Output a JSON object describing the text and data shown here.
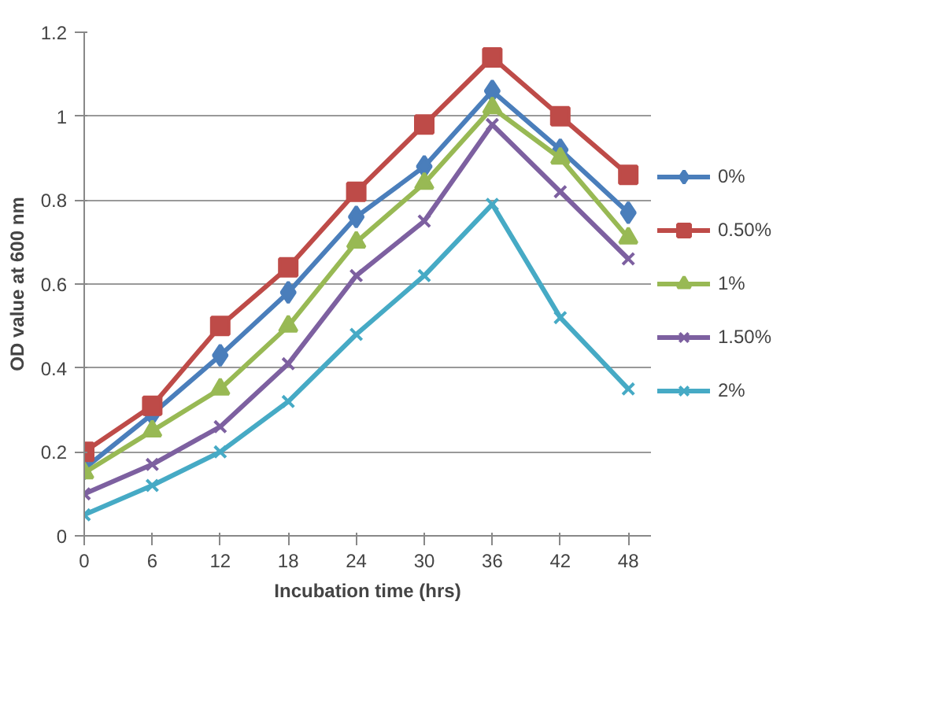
{
  "chart_data": {
    "type": "line",
    "xlabel": "Incubation time (hrs)",
    "ylabel": "OD value at 600 nm",
    "x": [
      0,
      6,
      12,
      18,
      24,
      30,
      36,
      42,
      48
    ],
    "xlim": [
      0,
      50
    ],
    "xticks": [
      0,
      6,
      12,
      18,
      24,
      30,
      36,
      42,
      48
    ],
    "ylim": [
      0,
      1.2
    ],
    "yticks": [
      0,
      0.2,
      0.4,
      0.6,
      0.8,
      1,
      1.2
    ],
    "grid": "y",
    "legend": "right",
    "series": [
      {
        "name": "0%",
        "color": "#4a7ebb",
        "marker": "diamond",
        "values": [
          0.16,
          0.29,
          0.43,
          0.58,
          0.76,
          0.88,
          1.06,
          0.92,
          0.77
        ]
      },
      {
        "name": "0.50%",
        "color": "#be4b48",
        "marker": "square",
        "values": [
          0.2,
          0.31,
          0.5,
          0.64,
          0.82,
          0.98,
          1.14,
          1.0,
          0.86
        ]
      },
      {
        "name": "1%",
        "color": "#98b954",
        "marker": "triangle",
        "values": [
          0.15,
          0.25,
          0.35,
          0.5,
          0.7,
          0.84,
          1.02,
          0.9,
          0.71
        ]
      },
      {
        "name": "1.50%",
        "color": "#7d60a0",
        "marker": "cross",
        "values": [
          0.1,
          0.17,
          0.26,
          0.41,
          0.62,
          0.75,
          0.98,
          0.82,
          0.66
        ]
      },
      {
        "name": "2%",
        "color": "#46aac5",
        "marker": "cross",
        "values": [
          0.05,
          0.12,
          0.2,
          0.32,
          0.48,
          0.62,
          0.79,
          0.52,
          0.35
        ]
      }
    ]
  }
}
